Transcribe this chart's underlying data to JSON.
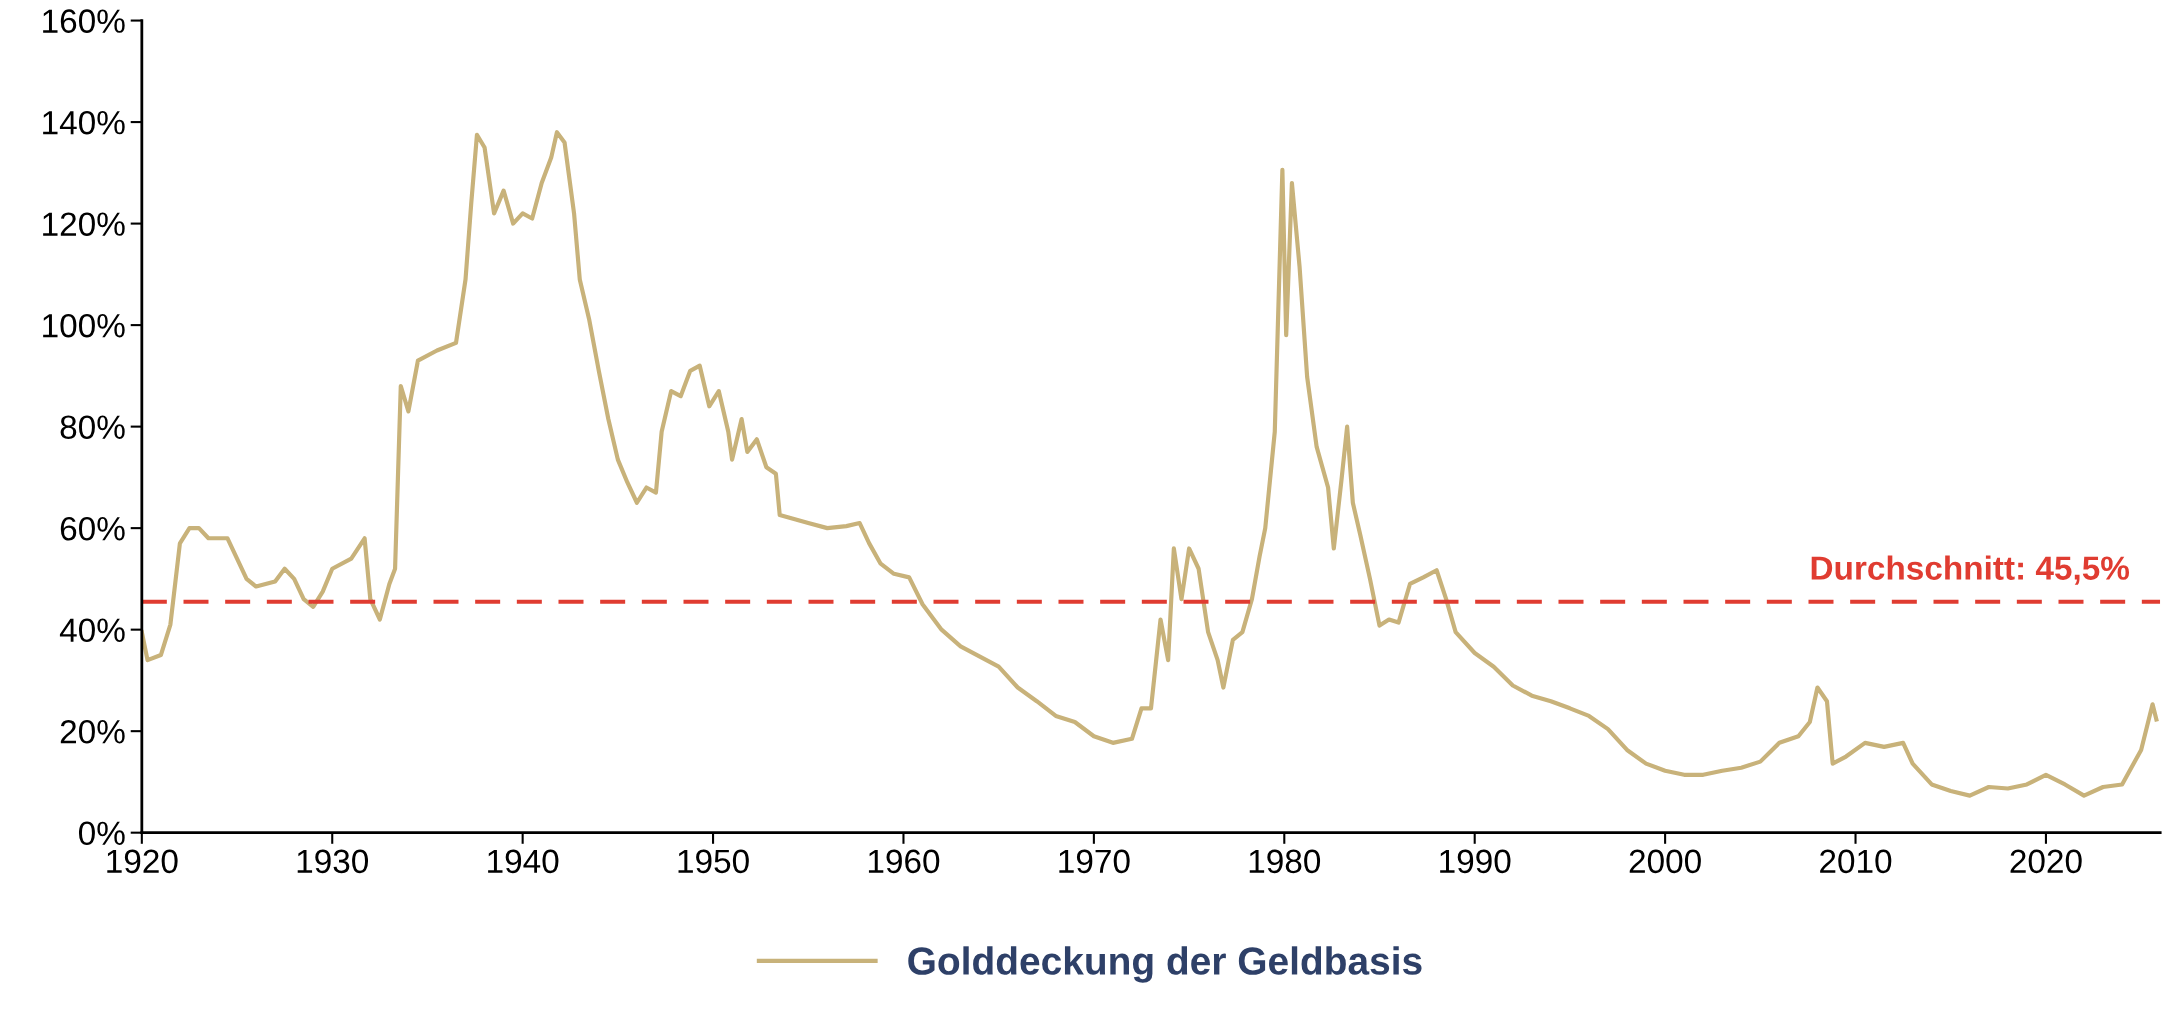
{
  "chart_data": {
    "type": "line",
    "x": [
      1920.0,
      1920.3,
      1921,
      1921.5,
      1922,
      1922.5,
      1923,
      1923.5,
      1924.5,
      1925,
      1925.5,
      1926,
      1927,
      1927.5,
      1928,
      1928.5,
      1929,
      1929.5,
      1930,
      1931,
      1931.7,
      1932,
      1932.5,
      1933,
      1933.3,
      1933.6,
      1934,
      1934.5,
      1935.5,
      1936.5,
      1937,
      1937.3,
      1937.6,
      1938,
      1938.5,
      1939,
      1939.5,
      1940,
      1940.5,
      1941,
      1941.5,
      1941.8,
      1942.2,
      1942.7,
      1943,
      1943.5,
      1944,
      1944.5,
      1945,
      1945.5,
      1946,
      1946.5,
      1947,
      1947.3,
      1947.8,
      1948.3,
      1948.8,
      1949.3,
      1949.8,
      1950.3,
      1950.8,
      1951,
      1951.5,
      1951.8,
      1952.3,
      1952.8,
      1953.3,
      1953.5,
      1955,
      1956,
      1957,
      1957.7,
      1958.2,
      1958.8,
      1959.5,
      1960.3,
      1961,
      1962,
      1963,
      1965,
      1966,
      1967,
      1968,
      1969,
      1970,
      1971,
      1972,
      1972.5,
      1973,
      1973.5,
      1973.9,
      1974.2,
      1974.6,
      1975,
      1975.5,
      1976,
      1976.5,
      1976.8,
      1977.3,
      1977.8,
      1978.3,
      1978.7,
      1979,
      1979.5,
      1979.9,
      1980.1,
      1980.4,
      1980.8,
      1981.2,
      1981.7,
      1982.3,
      1982.6,
      1983,
      1983.3,
      1983.6,
      1984,
      1984.5,
      1985,
      1985.5,
      1986,
      1986.6,
      1987.3,
      1988,
      1988.5,
      1989,
      1990,
      1991,
      1992,
      1993,
      1994,
      1995,
      1996,
      1997,
      1998,
      1999,
      2000,
      2001,
      2002,
      2003,
      2004,
      2005,
      2006,
      2007,
      2007.6,
      2008,
      2008.5,
      2008.8,
      2009.5,
      2010.5,
      2011.5,
      2012.5,
      2013,
      2014,
      2015,
      2016,
      2017,
      2018,
      2019,
      2020,
      2021,
      2022,
      2023,
      2024,
      2025,
      2025.6,
      2025.8
    ],
    "series": [
      {
        "name": "Golddeckung der Geldbasis",
        "color": "#c8b27a",
        "values": [
          39.5,
          34,
          35,
          41,
          57,
          60,
          60,
          58,
          58,
          54,
          50,
          48.5,
          49.5,
          52,
          50,
          46,
          44.5,
          47.5,
          52,
          54,
          58,
          46,
          42,
          49,
          52,
          88,
          83,
          93,
          95,
          96.5,
          109,
          124,
          137.5,
          135,
          122,
          126.5,
          120,
          122,
          121,
          128,
          133,
          138,
          136,
          122,
          109,
          101,
          91,
          81.5,
          73.5,
          69,
          65,
          68,
          67,
          79,
          87,
          86,
          91,
          92,
          84,
          87,
          79,
          73.5,
          81.5,
          75,
          77.5,
          72,
          70.7,
          62.6,
          61,
          60,
          60.4,
          61,
          57,
          53,
          51,
          50.3,
          45,
          40,
          36.7,
          32.7,
          28.6,
          25.9,
          23,
          21.8,
          19,
          17.7,
          18.5,
          24.5,
          24.5,
          42,
          34,
          56,
          46,
          56,
          52,
          39.5,
          34,
          28.6,
          38,
          39.5,
          46,
          54.4,
          60,
          79,
          130.6,
          98,
          128,
          111.6,
          89.8,
          76,
          68,
          56,
          69.4,
          80,
          65,
          58.5,
          50,
          40.8,
          42,
          41.4,
          49,
          50.3,
          51.7,
          46,
          39.5,
          35.4,
          32.7,
          29,
          27,
          25.9,
          24.5,
          23,
          20.4,
          16.3,
          13.6,
          12.2,
          11.4,
          11.4,
          12.2,
          12.8,
          14,
          17.7,
          19,
          21.8,
          28.6,
          25.9,
          13.6,
          15,
          17.7,
          16.9,
          17.7,
          13.6,
          9.5,
          8.2,
          7.3,
          9,
          8.7,
          9.5,
          11.4,
          9.5,
          7.3,
          9,
          9.5,
          16.3,
          25.3,
          22.3
        ]
      }
    ],
    "xlim": [
      1920,
      2026
    ],
    "xticks": [
      1920,
      1930,
      1940,
      1950,
      1960,
      1970,
      1980,
      1990,
      2000,
      2010,
      2020
    ],
    "ylim": [
      0,
      160
    ],
    "yticks": [
      {
        "value": 0,
        "label": "0%"
      },
      {
        "value": 20,
        "label": "20%"
      },
      {
        "value": 40,
        "label": "40%"
      },
      {
        "value": 60,
        "label": "60%"
      },
      {
        "value": 80,
        "label": "80%"
      },
      {
        "value": 100,
        "label": "100%"
      },
      {
        "value": 120,
        "label": "120%"
      },
      {
        "value": 140,
        "label": "140%"
      },
      {
        "value": 160,
        "label": "160%"
      }
    ],
    "ref_lines": [
      {
        "axis": "y",
        "value": 45.5,
        "label": "Durchschnitt: 45,5%",
        "color": "#e03c31",
        "line_style": "dashed"
      }
    ],
    "grid": false,
    "legend": "bottom",
    "line_style": "solid",
    "marker": "none"
  }
}
